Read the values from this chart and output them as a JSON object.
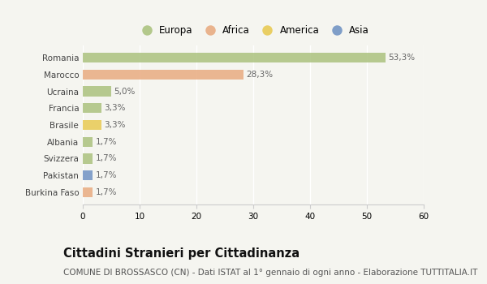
{
  "countries": [
    "Romania",
    "Marocco",
    "Ucraina",
    "Francia",
    "Brasile",
    "Albania",
    "Svizzera",
    "Pakistan",
    "Burkina Faso"
  ],
  "values": [
    53.3,
    28.3,
    5.0,
    3.3,
    3.3,
    1.7,
    1.7,
    1.7,
    1.7
  ],
  "labels": [
    "53,3%",
    "28,3%",
    "5,0%",
    "3,3%",
    "3,3%",
    "1,7%",
    "1,7%",
    "1,7%",
    "1,7%"
  ],
  "colors": [
    "#a8c07a",
    "#e8a87c",
    "#a8c07a",
    "#a8c07a",
    "#e8c84c",
    "#a8c07a",
    "#a8c07a",
    "#6b8fc2",
    "#e8a87c"
  ],
  "legend_labels": [
    "Europa",
    "Africa",
    "America",
    "Asia"
  ],
  "legend_colors": [
    "#a8c07a",
    "#e8a87c",
    "#e8c84c",
    "#6b8fc2"
  ],
  "xlim": [
    0,
    60
  ],
  "xticks": [
    0,
    10,
    20,
    30,
    40,
    50,
    60
  ],
  "title": "Cittadini Stranieri per Cittadinanza",
  "subtitle": "COMUNE DI BROSSASCO (CN) - Dati ISTAT al 1° gennaio di ogni anno - Elaborazione TUTTITALIA.IT",
  "bg_color": "#f5f5f0",
  "bar_height": 0.6,
  "title_fontsize": 10.5,
  "subtitle_fontsize": 7.5,
  "label_fontsize": 7.5,
  "tick_fontsize": 7.5,
  "legend_fontsize": 8.5
}
